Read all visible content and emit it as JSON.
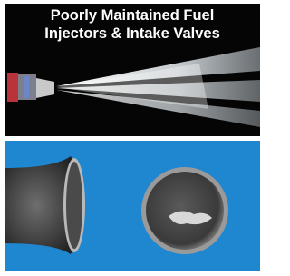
{
  "title": {
    "line1": "Poorly Maintained Fuel",
    "line2": "Injectors & Intake Valves"
  }
}
